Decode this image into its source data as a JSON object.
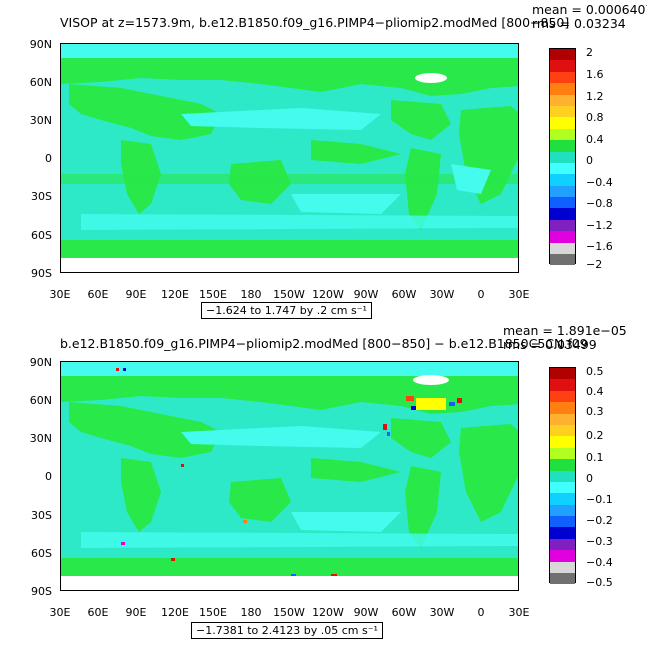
{
  "panels": [
    {
      "title_left": "VISOP  at  z=1573.9m,  b.e12.B1850.f09_g16.PIMP4−pliomip2.modMed  [800−850]",
      "mean": "mean  =  0.0006407",
      "rms": "rms  =  0.03234",
      "range": "−1.624 to 1.747 by .2 cm s⁻¹",
      "colorbar_labels": [
        "2",
        "1.6",
        "1.2",
        "0.8",
        "0.4",
        "0",
        "−0.4",
        "−0.8",
        "−1.2",
        "−1.6",
        "−2"
      ]
    },
    {
      "title_left": "b.e12.B1850.f09_g16.PIMP4−pliomip2.modMed  [800−850]  −  b.e12.B1850C5CN.f09",
      "mean": "mean  =  1.891e−05",
      "rms": "rms  =  0.03499",
      "range": "−1.7381 to 2.4123 by .05 cm s⁻¹",
      "colorbar_labels": [
        "0.5",
        "0.4",
        "0.3",
        "0.2",
        "0.1",
        "0",
        "−0.1",
        "−0.2",
        "−0.3",
        "−0.4",
        "−0.5"
      ]
    }
  ],
  "lat_labels": [
    "90N",
    "60N",
    "30N",
    "0",
    "30S",
    "60S",
    "90S"
  ],
  "lon_labels": [
    "30E",
    "60E",
    "90E",
    "120E",
    "150E",
    "180",
    "150W",
    "120W",
    "90W",
    "60W",
    "30W",
    "0",
    "30E"
  ],
  "colorbar_colors": [
    "#b00000",
    "#e01010",
    "#ff4010",
    "#ff8010",
    "#ffb030",
    "#ffd020",
    "#ffff00",
    "#b0ff20",
    "#20e040",
    "#20e0c0",
    "#40ffff",
    "#10d0ff",
    "#20a0ff",
    "#1060ff",
    "#0000d0",
    "#8020c0",
    "#e000e0",
    "#d8d8d8",
    "#707070"
  ],
  "colors": {
    "land_green": "#28e84a",
    "ocean_cyan": "#2ee9c8",
    "light_cyan": "#44fbee"
  }
}
